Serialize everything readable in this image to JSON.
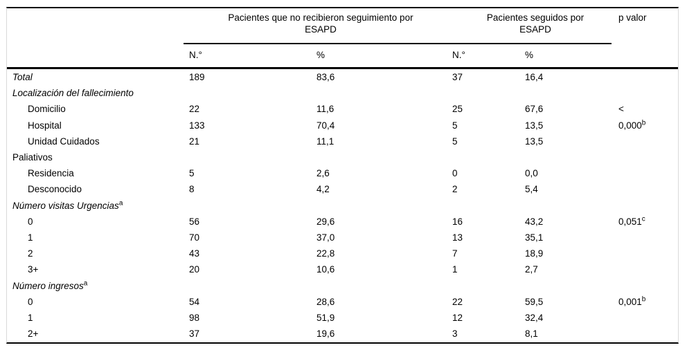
{
  "colors": {
    "rule": "#000000",
    "side_border": "#d9d9d9",
    "text": "#000000",
    "background": "#ffffff"
  },
  "header": {
    "group1_line1": "Pacientes que no recibieron seguimiento por",
    "group1_line2": "ESAPD",
    "group2_line1": "Pacientes seguidos por",
    "group2_line2": "ESAPD",
    "p_label": "p valor",
    "n_label": "N.°",
    "pct_label": "%"
  },
  "rows": [
    {
      "label": "Total",
      "label_sup": "",
      "n1": "189",
      "pct1": "83,6",
      "n2": "37",
      "pct2": "16,4",
      "p": "",
      "p_sup": ""
    },
    {
      "label": "Localización del fallecimiento",
      "label_sup": "",
      "n1": "",
      "pct1": "",
      "n2": "",
      "pct2": "",
      "p": "",
      "p_sup": ""
    },
    {
      "label": "Domicilio",
      "label_sup": "",
      "n1": "22",
      "pct1": "11,6",
      "n2": "25",
      "pct2": "67,6",
      "p": "<",
      "p_sup": ""
    },
    {
      "label": "Hospital",
      "label_sup": "",
      "n1": "133",
      "pct1": "70,4",
      "n2": "5",
      "pct2": "13,5",
      "p": "0,000",
      "p_sup": "b"
    },
    {
      "label": "Unidad Cuidados",
      "label_sup": "",
      "n1": "21",
      "pct1": "11,1",
      "n2": "5",
      "pct2": "13,5",
      "p": "",
      "p_sup": ""
    },
    {
      "label": "Paliativos",
      "label_sup": "",
      "n1": "",
      "pct1": "",
      "n2": "",
      "pct2": "",
      "p": "",
      "p_sup": ""
    },
    {
      "label": "Residencia",
      "label_sup": "",
      "n1": "5",
      "pct1": "2,6",
      "n2": "0",
      "pct2": "0,0",
      "p": "",
      "p_sup": ""
    },
    {
      "label": "Desconocido",
      "label_sup": "",
      "n1": "8",
      "pct1": "4,2",
      "n2": "2",
      "pct2": "5,4",
      "p": "",
      "p_sup": ""
    },
    {
      "label": "Número visitas Urgencias",
      "label_sup": "a",
      "n1": "",
      "pct1": "",
      "n2": "",
      "pct2": "",
      "p": "",
      "p_sup": ""
    },
    {
      "label": "0",
      "label_sup": "",
      "n1": "56",
      "pct1": "29,6",
      "n2": "16",
      "pct2": "43,2",
      "p": "0,051",
      "p_sup": "c"
    },
    {
      "label": "1",
      "label_sup": "",
      "n1": "70",
      "pct1": "37,0",
      "n2": "13",
      "pct2": "35,1",
      "p": "",
      "p_sup": ""
    },
    {
      "label": "2",
      "label_sup": "",
      "n1": "43",
      "pct1": "22,8",
      "n2": "7",
      "pct2": "18,9",
      "p": "",
      "p_sup": ""
    },
    {
      "label": "3+",
      "label_sup": "",
      "n1": "20",
      "pct1": "10,6",
      "n2": "1",
      "pct2": "2,7",
      "p": "",
      "p_sup": ""
    },
    {
      "label": "Número ingresos",
      "label_sup": "a",
      "n1": "",
      "pct1": "",
      "n2": "",
      "pct2": "",
      "p": "",
      "p_sup": ""
    },
    {
      "label": "0",
      "label_sup": "",
      "n1": "54",
      "pct1": "28,6",
      "n2": "22",
      "pct2": "59,5",
      "p": "0,001",
      "p_sup": "b"
    },
    {
      "label": "1",
      "label_sup": "",
      "n1": "98",
      "pct1": "51,9",
      "n2": "12",
      "pct2": "32,4",
      "p": "",
      "p_sup": ""
    },
    {
      "label": "2+",
      "label_sup": "",
      "n1": "37",
      "pct1": "19,6",
      "n2": "3",
      "pct2": "8,1",
      "p": "",
      "p_sup": ""
    }
  ]
}
